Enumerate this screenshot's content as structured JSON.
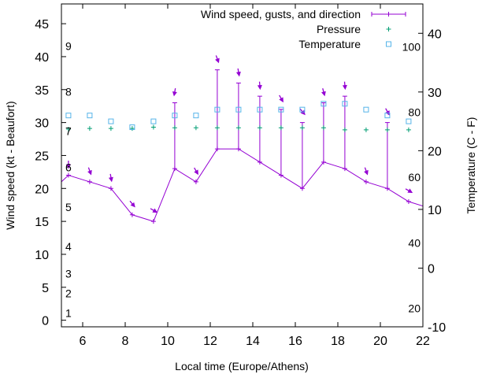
{
  "chart_data": {
    "type": "line",
    "title": "",
    "xlabel": "Local time (Europe/Athens)",
    "ylabel": "Wind speed (kt - Beaufort)",
    "y2label": "Temperature (C - F)",
    "xlim": [
      5,
      22
    ],
    "ylim": [
      -1,
      48
    ],
    "y2lim": [
      -10,
      45
    ],
    "x_ticks": [
      6,
      8,
      10,
      12,
      14,
      16,
      18,
      20,
      22
    ],
    "y_ticks": [
      0,
      5,
      10,
      15,
      20,
      25,
      30,
      35,
      40,
      45
    ],
    "y2_ticks": [
      -10,
      0,
      10,
      20,
      30,
      40
    ],
    "beaufort_labels": [
      {
        "label": "1",
        "kt": 1.2
      },
      {
        "label": "2",
        "kt": 4.2
      },
      {
        "label": "3",
        "kt": 7.2
      },
      {
        "label": "4",
        "kt": 11.3
      },
      {
        "label": "5",
        "kt": 17.3
      },
      {
        "label": "6",
        "kt": 23.3
      },
      {
        "label": "7",
        "kt": 28.8
      },
      {
        "label": "8",
        "kt": 34.8
      },
      {
        "label": "9",
        "kt": 41.7
      }
    ],
    "fahrenheit_labels": [
      {
        "label": "20",
        "c": -6.7
      },
      {
        "label": "40",
        "c": 4.4
      },
      {
        "label": "60",
        "c": 15.6
      },
      {
        "label": "80",
        "c": 26.7
      },
      {
        "label": "100",
        "c": 37.8
      }
    ],
    "legend": [
      {
        "label": "Wind speed, gusts, and direction",
        "color": "#9400d3",
        "marker": "line-plus"
      },
      {
        "label": "Pressure",
        "color": "#009e73",
        "marker": "plus"
      },
      {
        "label": "Temperature",
        "color": "#56b4e9",
        "marker": "square"
      }
    ],
    "series": [
      {
        "name": "Wind speed, gusts, and direction",
        "color": "#9400d3",
        "x": [
          4.33,
          5.33,
          6.33,
          7.33,
          8.33,
          9.33,
          10.33,
          11.33,
          12.33,
          13.33,
          14.33,
          15.33,
          16.33,
          17.33,
          18.33,
          19.33,
          20.33,
          21.33,
          22.33
        ],
        "y": [
          19,
          22,
          21,
          20,
          16,
          15,
          23,
          21,
          26,
          26,
          24,
          22,
          20,
          24,
          23,
          21,
          20,
          18,
          17
        ],
        "gust": [
          null,
          null,
          null,
          null,
          null,
          null,
          33,
          null,
          38,
          36,
          34,
          32,
          30,
          33,
          34,
          null,
          30,
          null,
          null
        ],
        "direction_deg": [
          null,
          0,
          340,
          350,
          320,
          300,
          10,
          330,
          340,
          350,
          355,
          330,
          320,
          345,
          355,
          340,
          330,
          300,
          null
        ]
      },
      {
        "name": "Pressure",
        "color": "#009e73",
        "x": [
          5.33,
          6.33,
          7.33,
          8.33,
          9.33,
          10.33,
          11.33,
          12.33,
          13.33,
          14.33,
          15.33,
          16.33,
          17.33,
          18.33,
          19.33,
          20.33,
          21.33
        ],
        "y": [
          29.0,
          29.1,
          29.1,
          29.1,
          29.3,
          29.2,
          29.2,
          29.2,
          29.2,
          29.2,
          29.2,
          29.2,
          29.2,
          28.9,
          28.9,
          28.9,
          28.9
        ]
      },
      {
        "name": "Temperature",
        "color": "#56b4e9",
        "axis": "y2",
        "x": [
          5.33,
          6.33,
          7.33,
          8.33,
          9.33,
          10.33,
          11.33,
          12.33,
          13.33,
          14.33,
          15.33,
          16.33,
          17.33,
          18.33,
          19.33,
          20.33,
          21.33
        ],
        "y": [
          26,
          26,
          25,
          24,
          25,
          26,
          26,
          27,
          27,
          27,
          27,
          27,
          28,
          28,
          27,
          26,
          25
        ]
      }
    ]
  }
}
